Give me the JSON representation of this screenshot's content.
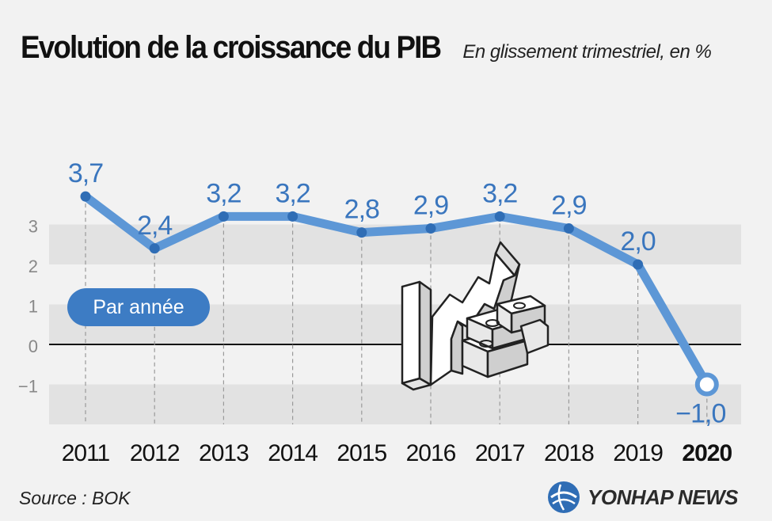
{
  "header": {
    "title": "Evolution de la croissance du PIB",
    "subtitle": "En glissement trimestriel, en %"
  },
  "badge": {
    "label": "Par année"
  },
  "footer": {
    "source": "Source : BOK",
    "brand": "YONHAP NEWS"
  },
  "chart_data": {
    "type": "line",
    "title": "Evolution de la croissance du PIB",
    "subtitle": "En glissement trimestriel, en %",
    "categories": [
      "2011",
      "2012",
      "2013",
      "2014",
      "2015",
      "2016",
      "2017",
      "2018",
      "2019",
      "2020"
    ],
    "values": [
      3.7,
      2.4,
      3.2,
      3.2,
      2.8,
      2.9,
      3.2,
      2.9,
      2.0,
      -1.0
    ],
    "value_labels": [
      "3,7",
      "2,4",
      "3,2",
      "3,2",
      "2,8",
      "2,9",
      "3,2",
      "2,9",
      "2,0",
      "−1,0"
    ],
    "y_ticks": [
      3,
      2,
      1,
      0,
      -1
    ],
    "y_tick_labels": [
      "3",
      "2",
      "1",
      "0",
      "−1"
    ],
    "ylim": [
      -2,
      3
    ],
    "grid": true,
    "highlight_category": "2020",
    "colors": {
      "line": "#5d97d6",
      "marker": "#2f6db5",
      "label": "#3a76be",
      "band": "#e2e2e2",
      "badge": "#3d7cc4"
    }
  }
}
